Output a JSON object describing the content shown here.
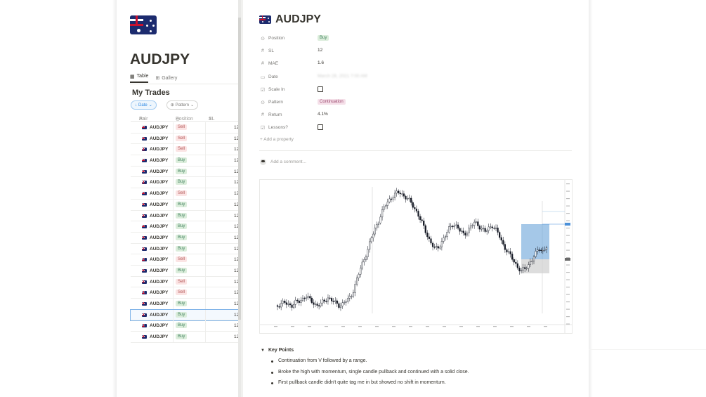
{
  "left": {
    "page_title": "AUDJPY",
    "views": [
      {
        "label": "Table",
        "active": true
      },
      {
        "label": "Gallery",
        "active": false
      }
    ],
    "database_title": "My Trades",
    "filters": [
      {
        "label": "Date",
        "icon": "arrow-down-icon"
      },
      {
        "label": "Pattern",
        "icon": "plus-circle-icon"
      }
    ],
    "columns": [
      {
        "label": "Pair",
        "icon": "text-icon"
      },
      {
        "label": "Position",
        "icon": "select-icon"
      },
      {
        "label": "SL",
        "icon": "number-icon"
      }
    ],
    "rows": [
      {
        "pair": "AUDJPY",
        "position": "Sell",
        "sl": "12"
      },
      {
        "pair": "AUDJPY",
        "position": "Sell",
        "sl": "12"
      },
      {
        "pair": "AUDJPY",
        "position": "Sell",
        "sl": "12"
      },
      {
        "pair": "AUDJPY",
        "position": "Buy",
        "sl": "12"
      },
      {
        "pair": "AUDJPY",
        "position": "Buy",
        "sl": "12"
      },
      {
        "pair": "AUDJPY",
        "position": "Buy",
        "sl": "12"
      },
      {
        "pair": "AUDJPY",
        "position": "Sell",
        "sl": "12"
      },
      {
        "pair": "AUDJPY",
        "position": "Buy",
        "sl": "12"
      },
      {
        "pair": "AUDJPY",
        "position": "Buy",
        "sl": "12"
      },
      {
        "pair": "AUDJPY",
        "position": "Buy",
        "sl": "12"
      },
      {
        "pair": "AUDJPY",
        "position": "Buy",
        "sl": "12"
      },
      {
        "pair": "AUDJPY",
        "position": "Buy",
        "sl": "12"
      },
      {
        "pair": "AUDJPY",
        "position": "Sell",
        "sl": "12"
      },
      {
        "pair": "AUDJPY",
        "position": "Buy",
        "sl": "12"
      },
      {
        "pair": "AUDJPY",
        "position": "Sell",
        "sl": "12"
      },
      {
        "pair": "AUDJPY",
        "position": "Sell",
        "sl": "12"
      },
      {
        "pair": "AUDJPY",
        "position": "Buy",
        "sl": "12"
      },
      {
        "pair": "AUDJPY",
        "position": "Buy",
        "sl": "12",
        "selected": true
      },
      {
        "pair": "AUDJPY",
        "position": "Buy",
        "sl": "12"
      },
      {
        "pair": "AUDJPY",
        "position": "Buy",
        "sl": "12"
      }
    ]
  },
  "right": {
    "page_title": "AUDJPY",
    "properties": [
      {
        "icon": "select-icon",
        "name": "Position",
        "value": "Buy",
        "kind": "tag-buy"
      },
      {
        "icon": "number-icon",
        "name": "SL",
        "value": "12",
        "kind": "text"
      },
      {
        "icon": "number-icon",
        "name": "MAE",
        "value": "1.6",
        "kind": "text"
      },
      {
        "icon": "calendar-icon",
        "name": "Date",
        "value": "March 26, 2021 7:00 AM",
        "kind": "blur"
      },
      {
        "icon": "checkbox-icon",
        "name": "Scale In",
        "value": "",
        "kind": "checkbox"
      },
      {
        "icon": "select-icon",
        "name": "Pattern",
        "value": "Continuation",
        "kind": "tag-cont"
      },
      {
        "icon": "number-icon",
        "name": "Return",
        "value": "4.1%",
        "kind": "text"
      },
      {
        "icon": "checkbox-icon",
        "name": "Lessons?",
        "value": "",
        "kind": "checkbox"
      }
    ],
    "add_property": "Add a property",
    "comment_placeholder": "Add a comment...",
    "key_points_title": "Key Points",
    "key_points": [
      "Continuation from V followed by a range.",
      "Broke the high with momentum, single candle pullback and continued with a solid close.",
      "First pullback candle didn't quite tag me in but showed no shift in momentum."
    ]
  },
  "chart_data": {
    "type": "candlestick-screenshot",
    "shape": [
      88,
      87,
      86,
      87,
      88,
      86,
      85,
      83,
      81,
      84,
      86,
      88,
      87,
      85,
      82,
      84,
      86,
      88,
      87,
      85,
      83,
      78,
      70,
      62,
      55,
      48,
      40,
      33,
      27,
      20,
      15,
      11,
      8,
      6,
      5,
      7,
      9,
      12,
      16,
      20,
      26,
      32,
      38,
      43,
      47,
      45,
      40,
      36,
      31,
      28,
      30,
      34,
      36,
      33,
      30,
      27,
      29,
      32,
      34,
      31,
      29,
      33,
      38,
      44,
      48,
      52,
      56,
      60,
      63,
      61,
      58,
      54,
      50,
      46,
      48,
      45
    ],
    "colors": {
      "up": "#ffffff",
      "down": "#131722",
      "zone": "#5b9bd5",
      "zone_low": "#b0b0b0"
    }
  }
}
